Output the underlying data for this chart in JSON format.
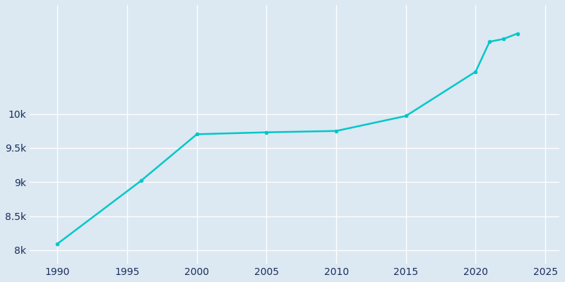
{
  "years": [
    1990,
    1996,
    2000,
    2005,
    2010,
    2015,
    2020,
    2021,
    2022,
    2023
  ],
  "population": [
    8094,
    9020,
    9702,
    9730,
    9750,
    9970,
    10620,
    11060,
    11100,
    11180
  ],
  "line_color": "#00c8c8",
  "bg_color": "#dce8f2",
  "grid_color": "#ffffff",
  "tick_color": "#1a2e5a",
  "xlim": [
    1988,
    2026
  ],
  "ylim": [
    7800,
    11600
  ],
  "xticks": [
    1990,
    1995,
    2000,
    2005,
    2010,
    2015,
    2020,
    2025
  ],
  "ytick_values": [
    8000,
    8500,
    9000,
    9500,
    10000
  ],
  "ytick_labels": [
    "8k",
    "8.5k",
    "9k",
    "9.5k",
    "10k"
  ]
}
